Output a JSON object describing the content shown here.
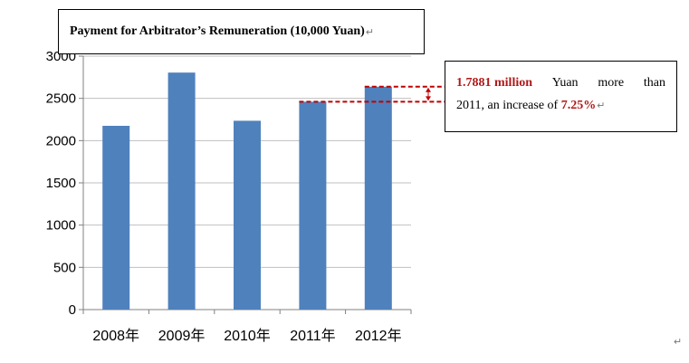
{
  "chart_data": {
    "type": "bar",
    "title": "Payment for Arbitrator’s Remuneration (10,000 Yuan)",
    "categories": [
      "2008年",
      "2009年",
      "2010年",
      "2011年",
      "2012年"
    ],
    "values": [
      2175,
      2805,
      2235,
      2460,
      2638
    ],
    "ylim": [
      0,
      3000
    ],
    "yticks": [
      0,
      500,
      1000,
      1500,
      2000,
      2500,
      3000
    ],
    "grid": true,
    "bar_color": "#4f81bd",
    "annotation": {
      "highlight": "1.7881 million",
      "text_a": "Yuan",
      "text_b": "more",
      "text_c": "than",
      "text_d": "2011, an increase of",
      "percent": "7.25%",
      "from_category": "2011年",
      "to_category": "2012年",
      "line_color": "#c00000"
    }
  },
  "para_mark": "↵"
}
